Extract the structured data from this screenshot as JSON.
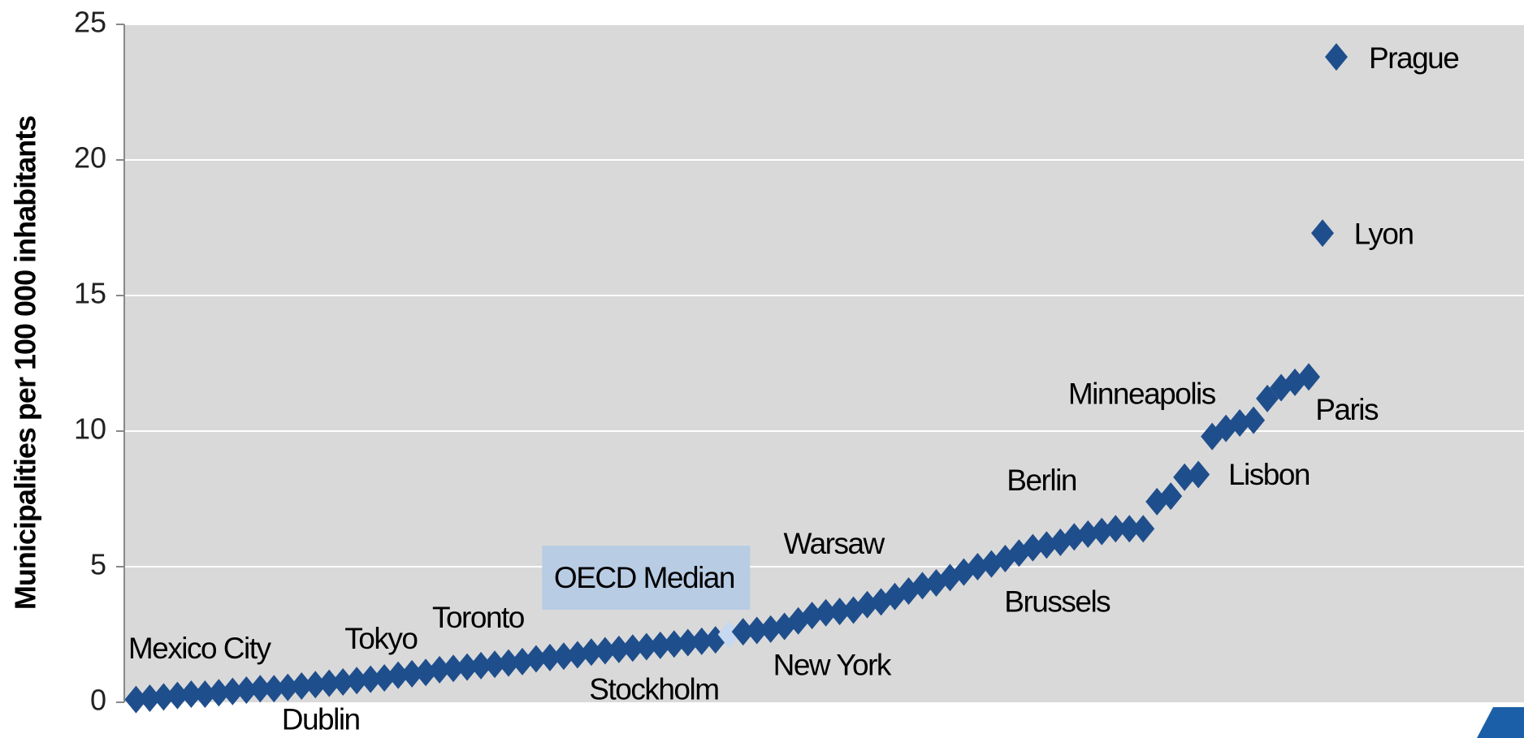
{
  "chart_data": {
    "type": "scatter",
    "y_label": "Municipalities per 100 000 inhabitants",
    "ylim": [
      0,
      25
    ],
    "yticks": [
      0,
      5,
      10,
      15,
      20,
      25
    ],
    "grid": true,
    "color": "#1f4e8c",
    "highlight": {
      "index": 43,
      "color": "#c6d9f0",
      "label_background": "#b8cce4"
    },
    "categories": [
      "Mexico City",
      null,
      null,
      null,
      null,
      null,
      null,
      null,
      null,
      null,
      null,
      null,
      "Dublin",
      null,
      null,
      null,
      null,
      "Tokyo",
      null,
      null,
      null,
      null,
      "Toronto",
      null,
      null,
      null,
      null,
      null,
      null,
      null,
      null,
      null,
      null,
      null,
      null,
      null,
      null,
      "Stockholm",
      null,
      null,
      null,
      null,
      null,
      "OECD Median",
      null,
      null,
      "New York",
      null,
      null,
      "Warsaw",
      null,
      null,
      null,
      null,
      null,
      null,
      null,
      null,
      null,
      null,
      null,
      null,
      null,
      "Brussels",
      null,
      null,
      "Berlin",
      null,
      null,
      null,
      null,
      null,
      null,
      null,
      null,
      null,
      null,
      "Lisbon",
      "Minneapolis",
      null,
      null,
      null,
      null,
      null,
      null,
      "Paris",
      "Lyon",
      "Prague"
    ],
    "values": [
      0.1,
      0.15,
      0.2,
      0.25,
      0.3,
      0.3,
      0.35,
      0.4,
      0.45,
      0.5,
      0.5,
      0.55,
      0.6,
      0.65,
      0.7,
      0.75,
      0.8,
      0.85,
      0.9,
      1.0,
      1.05,
      1.1,
      1.2,
      1.25,
      1.3,
      1.35,
      1.4,
      1.45,
      1.5,
      1.6,
      1.65,
      1.7,
      1.75,
      1.85,
      1.9,
      1.95,
      2.0,
      2.05,
      2.1,
      2.15,
      2.2,
      2.25,
      2.3,
      2.5,
      2.6,
      2.65,
      2.7,
      2.8,
      3.0,
      3.2,
      3.3,
      3.35,
      3.4,
      3.6,
      3.7,
      3.9,
      4.1,
      4.3,
      4.4,
      4.6,
      4.8,
      5.0,
      5.1,
      5.3,
      5.5,
      5.7,
      5.8,
      5.9,
      6.1,
      6.2,
      6.3,
      6.4,
      6.4,
      6.4,
      7.4,
      7.6,
      8.3,
      8.4,
      9.8,
      10.1,
      10.3,
      10.4,
      11.2,
      11.6,
      11.8,
      12.0,
      17.3,
      23.8
    ]
  }
}
